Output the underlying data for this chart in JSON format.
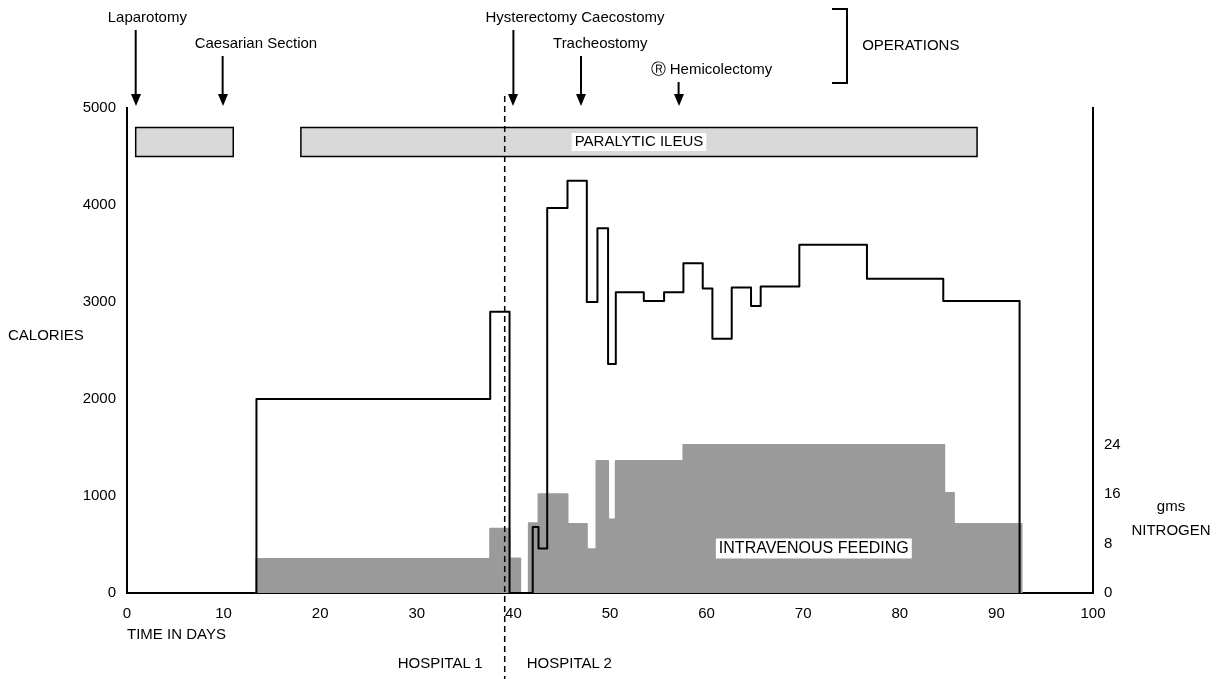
{
  "chart_data": {
    "type": "step",
    "xlabel": "TIME IN DAYS",
    "ylabel": "CALORIES",
    "y2label": "gms NITROGEN",
    "xlim": [
      0,
      100
    ],
    "xticks": [
      0,
      10,
      20,
      30,
      40,
      50,
      60,
      70,
      80,
      90,
      100
    ],
    "ylim": [
      0,
      5000
    ],
    "yticks": [
      0,
      1000,
      2000,
      3000,
      4000,
      5000
    ],
    "y2lim": [
      0,
      78.6
    ],
    "y2ticks": [
      0,
      8,
      16,
      24
    ],
    "series": [
      {
        "name": "INTRAVENOUS FEEDING",
        "type": "area",
        "axis": "y2",
        "color": "#9a9a9a",
        "x": [
          13.4,
          13.4,
          37.6,
          39.6,
          40.7,
          41.6,
          42.6,
          45.6,
          47.6,
          48.6,
          49.8,
          50.6,
          57.6,
          84.6,
          85.6,
          92.6
        ],
        "values": [
          0,
          5.5,
          10.4,
          5.6,
          0,
          11.3,
          16,
          11.2,
          7.1,
          21.4,
          11.9,
          21.4,
          24,
          16.2,
          11.2,
          0
        ]
      },
      {
        "type": "step",
        "color": "#000000",
        "x": [
          13.4,
          13.4,
          37.6,
          39.6,
          42.0,
          42.6,
          43.5,
          45.6,
          47.6,
          48.7,
          49.8,
          50.6,
          53.5,
          55.6,
          57.6,
          59.6,
          60.6,
          62.6,
          64.6,
          65.6,
          69.6,
          76.6,
          84.5,
          92.4
        ],
        "values": [
          0,
          2000,
          2900,
          0,
          680,
          460,
          3970,
          4250,
          3000,
          3760,
          2360,
          3100,
          3010,
          3100,
          3400,
          3140,
          2620,
          3150,
          2960,
          3160,
          3590,
          3240,
          3010,
          0
        ]
      }
    ],
    "bands": [
      {
        "axis": "x",
        "from": 0.9,
        "to": 11.0,
        "color": "#d9d9d9"
      },
      {
        "axis": "x",
        "from": 18.0,
        "to": 88.0,
        "label": "PARALYTIC ILEUS",
        "color": "#d9d9d9"
      }
    ],
    "ref_lines": [
      {
        "axis": "x",
        "value": 39.1,
        "line_style": "dashed"
      },
      {
        "axis": "x",
        "value": 0.9,
        "label": "Laparotomy"
      },
      {
        "axis": "x",
        "value": 9.9,
        "label": "Caesarian Section"
      },
      {
        "axis": "x",
        "value": 40.0,
        "label": "Hysterectomy Caecostomy"
      },
      {
        "axis": "x",
        "value": 47.0,
        "label": "Tracheostomy"
      },
      {
        "axis": "x",
        "value": 57.1,
        "label": "Ⓡ Hemicolectomy"
      }
    ],
    "annotations": [
      "OPERATIONS",
      "HOSPITAL 1",
      "HOSPITAL 2"
    ]
  }
}
